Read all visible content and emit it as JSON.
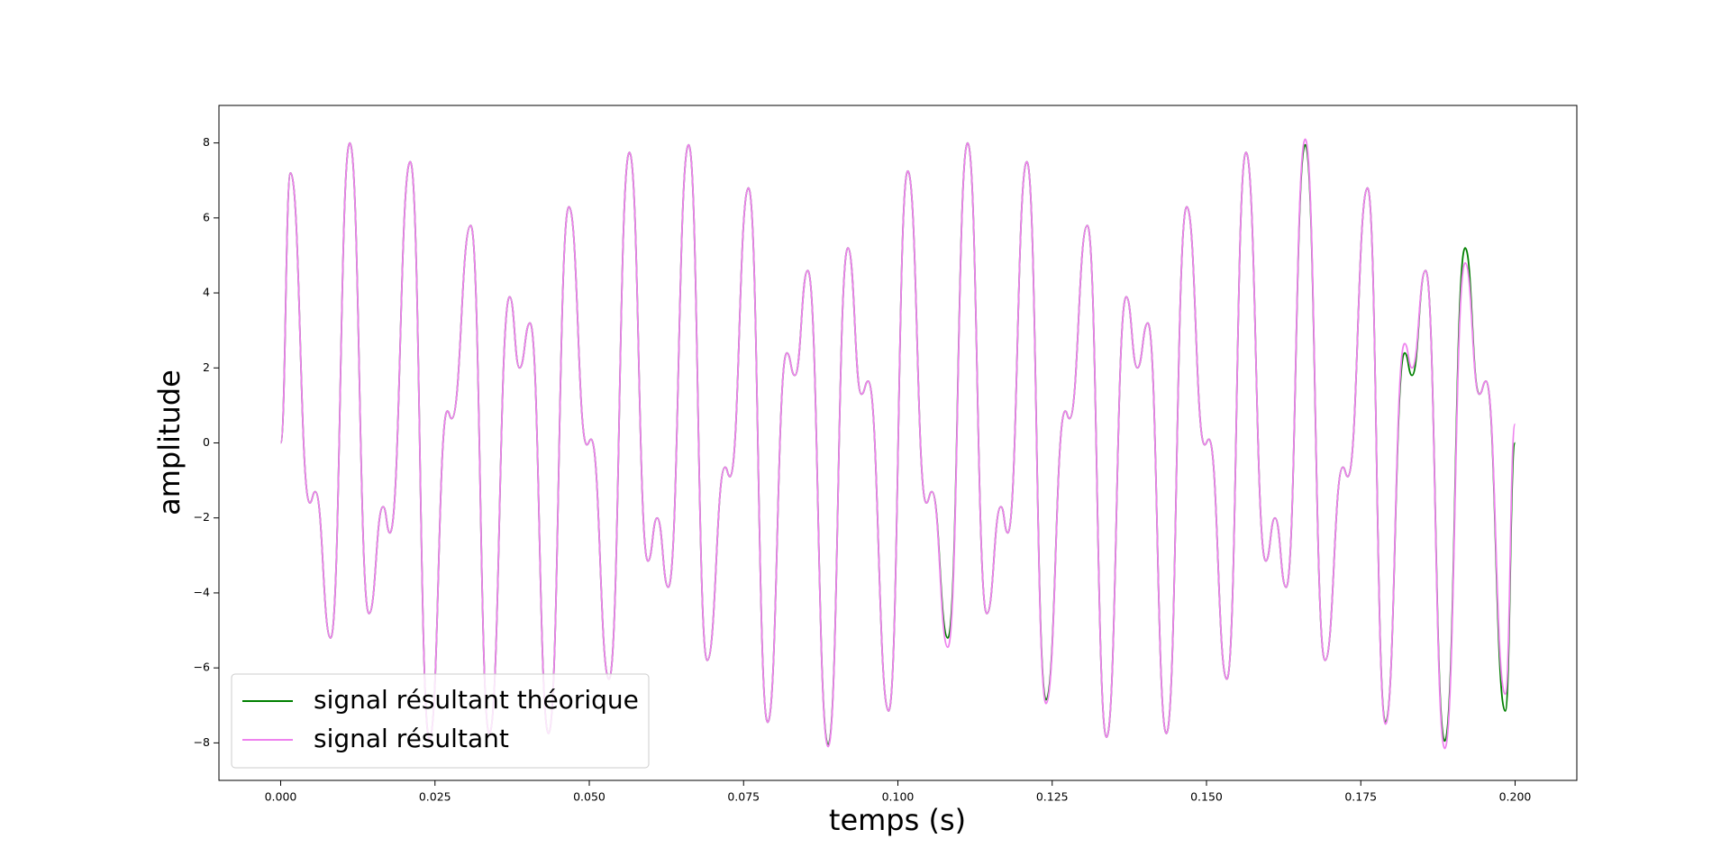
{
  "chart_data": {
    "type": "line",
    "xlabel": "temps (s)",
    "ylabel": "amplitude",
    "x": [
      0,
      0.0016,
      0.0047,
      0.0056,
      0.0081,
      0.0112,
      0.0143,
      0.0166,
      0.0177,
      0.021,
      0.0241,
      0.027,
      0.0277,
      0.0308,
      0.0338,
      0.0371,
      0.0387,
      0.0404,
      0.0434,
      0.0467,
      0.0496,
      0.0503,
      0.0532,
      0.0565,
      0.0595,
      0.061,
      0.0628,
      0.0661,
      0.0691,
      0.072,
      0.0728,
      0.0758,
      0.0789,
      0.082,
      0.0833,
      0.0854,
      0.0887,
      0.0919,
      0.0941,
      0.0952,
      0.0985,
      0.1016,
      0.1046,
      0.1055,
      0.1081,
      0.1113,
      0.1144,
      0.1167,
      0.1178,
      0.1209,
      0.124,
      0.1271,
      0.1278,
      0.1307,
      0.1338,
      0.137,
      0.1388,
      0.1405,
      0.1435,
      0.1468,
      0.1497,
      0.1504,
      0.1533,
      0.1564,
      0.1596,
      0.1611,
      0.1629,
      0.166,
      0.1692,
      0.1721,
      0.1729,
      0.1761,
      0.179,
      0.1821,
      0.1833,
      0.1855,
      0.1886,
      0.1919,
      0.1942,
      0.1953,
      0.1984,
      0.2
    ],
    "series": [
      {
        "name": "signal résultant théorique",
        "color": "#008000",
        "values": [
          0,
          7.2,
          -1.6,
          -1.3,
          -5.2,
          8.0,
          -4.55,
          -1.7,
          -2.4,
          7.5,
          -7.9,
          0.85,
          0.65,
          5.8,
          -7.75,
          3.9,
          2.0,
          3.2,
          -7.75,
          6.3,
          -0.05,
          0.1,
          -6.3,
          7.75,
          -3.15,
          -2.0,
          -3.85,
          7.95,
          -5.8,
          -0.65,
          -0.9,
          6.8,
          -7.45,
          2.4,
          1.8,
          4.6,
          -8.05,
          5.2,
          1.3,
          1.65,
          -7.15,
          7.25,
          -1.6,
          -1.3,
          -5.2,
          8.0,
          -4.55,
          -1.7,
          -2.4,
          7.5,
          -6.85,
          0.85,
          0.65,
          5.8,
          -7.85,
          3.9,
          2.0,
          3.2,
          -7.75,
          6.3,
          -0.05,
          0.1,
          -6.3,
          7.75,
          -3.15,
          -2.0,
          -3.85,
          7.95,
          -5.8,
          -0.65,
          -0.9,
          6.8,
          -7.45,
          2.4,
          1.8,
          4.6,
          -7.95,
          5.2,
          1.3,
          1.65,
          -7.15,
          0
        ]
      },
      {
        "name": "signal résultant",
        "color": "#ee82ee",
        "values": [
          0,
          7.2,
          -1.6,
          -1.3,
          -5.2,
          8.0,
          -4.55,
          -1.7,
          -2.4,
          7.5,
          -7.9,
          0.85,
          0.65,
          5.8,
          -7.75,
          3.9,
          2.0,
          3.2,
          -7.75,
          6.3,
          -0.05,
          0.1,
          -6.3,
          7.75,
          -3.15,
          -2.0,
          -3.85,
          7.95,
          -5.8,
          -0.65,
          -0.9,
          6.8,
          -7.45,
          2.4,
          1.8,
          4.6,
          -8.1,
          5.2,
          1.3,
          1.65,
          -7.15,
          7.25,
          -1.6,
          -1.3,
          -5.45,
          8.0,
          -4.55,
          -1.7,
          -2.4,
          7.5,
          -6.95,
          0.85,
          0.65,
          5.8,
          -7.85,
          3.9,
          2.0,
          3.2,
          -7.75,
          6.3,
          -0.05,
          0.1,
          -6.3,
          7.75,
          -3.15,
          -2.0,
          -3.85,
          8.1,
          -5.8,
          -0.65,
          -0.9,
          6.8,
          -7.5,
          2.65,
          2.0,
          4.6,
          -8.15,
          4.8,
          1.3,
          1.65,
          -6.7,
          0.5
        ]
      }
    ],
    "xlim": [
      -0.01,
      0.21
    ],
    "xticks": [
      {
        "value": 0,
        "label": "0.000"
      },
      {
        "value": 0.025,
        "label": "0.025"
      },
      {
        "value": 0.05,
        "label": "0.050"
      },
      {
        "value": 0.075,
        "label": "0.075"
      },
      {
        "value": 0.1,
        "label": "0.100"
      },
      {
        "value": 0.125,
        "label": "0.125"
      },
      {
        "value": 0.15,
        "label": "0.150"
      },
      {
        "value": 0.175,
        "label": "0.175"
      },
      {
        "value": 0.2,
        "label": "0.200"
      }
    ],
    "ylim": [
      -9.0,
      9.0
    ],
    "yticks": [
      {
        "value": -8,
        "label": "−8"
      },
      {
        "value": -6,
        "label": "−6"
      },
      {
        "value": -4,
        "label": "−4"
      },
      {
        "value": -2,
        "label": "−2"
      },
      0,
      2,
      4,
      6,
      8
    ],
    "grid": false,
    "legend": "lower left"
  }
}
